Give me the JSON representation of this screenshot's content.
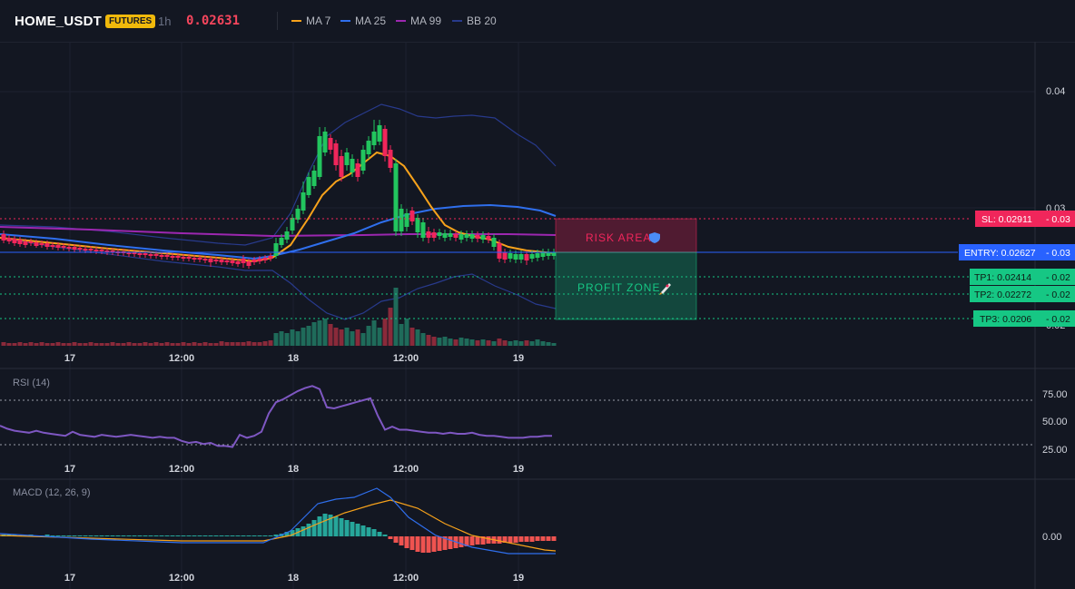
{
  "header": {
    "symbol": "HOME_USDT",
    "badge": "FUTURES",
    "timeframe": "1h",
    "price": "0.02631",
    "legend": [
      {
        "label": "MA 7",
        "color": "#f7a21b"
      },
      {
        "label": "MA 25",
        "color": "#2f6fed"
      },
      {
        "label": "MA 99",
        "color": "#9c27b0"
      },
      {
        "label": "BB 20",
        "color": "#283a8c"
      }
    ]
  },
  "colors": {
    "background": "#131722",
    "up": "#22c55e",
    "down": "#f0265b",
    "sl": "#f0265b",
    "entry": "#2962ff",
    "tp": "#16c784",
    "rsi_line": "#7e57c2",
    "macd_line": "#2f6fed",
    "signal_line": "#f7a21b"
  },
  "price_axis": {
    "ticks": [
      "0.04",
      "0.03",
      "0.02"
    ]
  },
  "time_axis": {
    "labels": [
      "17",
      "12:00",
      "18",
      "12:00",
      "19"
    ]
  },
  "levels": [
    {
      "id": "sl",
      "label": "SL: 0.02911",
      "value_text": "0.03",
      "value": 0.02911,
      "color": "#f0265b"
    },
    {
      "id": "entry",
      "label": "ENTRY: 0.02627",
      "value_text": "0.03",
      "value": 0.02627,
      "color": "#2962ff"
    },
    {
      "id": "tp1",
      "label": "TP1: 0.02414",
      "value_text": "0.02",
      "value": 0.02414,
      "color": "#16c784"
    },
    {
      "id": "tp2",
      "label": "TP2: 0.02272",
      "value_text": "0.02",
      "value": 0.02272,
      "color": "#16c784"
    },
    {
      "id": "tp3",
      "label": "TP3: 0.0206",
      "value_text": "0.02",
      "value": 0.0206,
      "color": "#16c784"
    }
  ],
  "zones": {
    "risk_label": "RISK AREA",
    "risk_icon": "shield-icon",
    "profit_label": "PROFIT ZONE",
    "profit_icon": "rocket-icon"
  },
  "rsi": {
    "title": "RSI (14)",
    "ticks": [
      "75.00",
      "50.00",
      "25.00"
    ],
    "overbought": 70,
    "oversold": 30,
    "values": [
      50,
      47,
      45,
      44,
      43,
      45,
      43,
      42,
      41,
      40,
      44,
      41,
      40,
      39,
      41,
      40,
      39,
      40,
      41,
      40,
      39,
      38,
      39,
      38,
      38,
      35,
      33,
      34,
      32,
      33,
      30,
      30,
      29,
      41,
      38,
      40,
      44,
      62,
      73,
      76,
      80,
      84,
      87,
      89,
      86,
      68,
      67,
      69,
      71,
      73,
      75,
      77,
      60,
      46,
      49,
      46,
      46,
      45,
      44,
      43,
      43,
      42,
      43,
      42,
      42,
      43,
      41,
      40,
      40,
      39,
      38,
      38,
      38,
      39,
      39,
      40,
      40
    ],
    "time_labels": [
      "17",
      "12:00",
      "18",
      "12:00",
      "19"
    ]
  },
  "macd": {
    "title": "MACD (12, 26, 9)",
    "ticks": [
      "0.00"
    ],
    "time_labels": [
      "17",
      "12:00",
      "18",
      "12:00",
      "19"
    ]
  }
}
